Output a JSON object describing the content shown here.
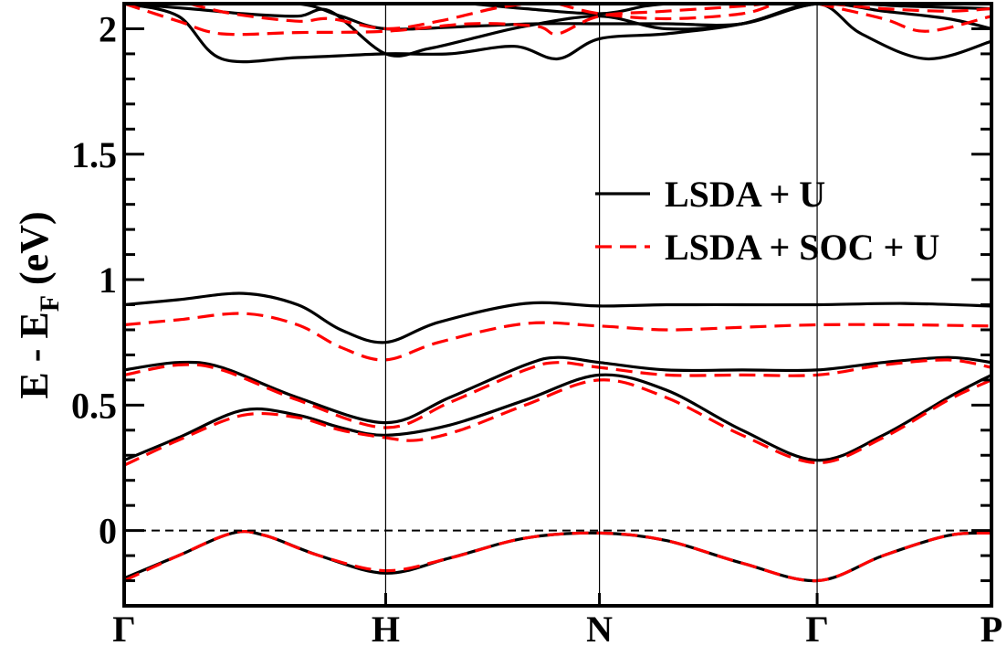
{
  "chart_data": {
    "type": "line",
    "title": "",
    "ylabel": "E - E",
    "ylabel_sub": "F",
    "ylabel_unit": " (eV)",
    "ylim": [
      -0.3,
      2.1
    ],
    "yticks": [
      0,
      0.5,
      1,
      1.5,
      2
    ],
    "yticklabels": [
      "0",
      "0.5",
      "1",
      "1.5",
      "2"
    ],
    "xlim": [
      0,
      4
    ],
    "kpoints": [
      {
        "label": "Γ",
        "x": 0
      },
      {
        "label": "H",
        "x": 1.206
      },
      {
        "label": "N",
        "x": 2.192
      },
      {
        "label": "Γ",
        "x": 3.196
      },
      {
        "label": "P",
        "x": 4
      }
    ],
    "fermi_level": 0,
    "legend": {
      "placement": "right",
      "entries": [
        {
          "label": "LSDA + U",
          "style": "solid",
          "color": "#000000"
        },
        {
          "label": "LSDA + SOC + U",
          "style": "dashed",
          "color": "#ff0000"
        }
      ]
    },
    "series": [
      {
        "name": "LSDA + U",
        "style": "solid",
        "color": "#000000",
        "bands": [
          [
            [
              0,
              -0.19
            ],
            [
              0.25,
              -0.1
            ],
            [
              0.5,
              -0.01
            ],
            [
              0.65,
              -0.02
            ],
            [
              0.9,
              -0.1
            ],
            [
              1.206,
              -0.17
            ],
            [
              1.5,
              -0.11
            ],
            [
              1.85,
              -0.03
            ],
            [
              2.192,
              -0.01
            ],
            [
              2.5,
              -0.04
            ],
            [
              2.85,
              -0.13
            ],
            [
              3.196,
              -0.2
            ],
            [
              3.5,
              -0.1
            ],
            [
              3.8,
              -0.02
            ],
            [
              4,
              -0.01
            ]
          ],
          [
            [
              0,
              0.28
            ],
            [
              0.25,
              0.37
            ],
            [
              0.55,
              0.48
            ],
            [
              0.8,
              0.46
            ],
            [
              1.0,
              0.41
            ],
            [
              1.206,
              0.38
            ],
            [
              1.5,
              0.42
            ],
            [
              1.85,
              0.52
            ],
            [
              2.192,
              0.62
            ],
            [
              2.5,
              0.56
            ],
            [
              2.85,
              0.4
            ],
            [
              3.196,
              0.28
            ],
            [
              3.5,
              0.38
            ],
            [
              3.8,
              0.53
            ],
            [
              4,
              0.62
            ]
          ],
          [
            [
              0,
              0.64
            ],
            [
              0.25,
              0.67
            ],
            [
              0.45,
              0.65
            ],
            [
              0.8,
              0.53
            ],
            [
              1.206,
              0.43
            ],
            [
              1.5,
              0.53
            ],
            [
              1.85,
              0.66
            ],
            [
              2.0,
              0.69
            ],
            [
              2.192,
              0.67
            ],
            [
              2.5,
              0.64
            ],
            [
              2.85,
              0.64
            ],
            [
              3.196,
              0.64
            ],
            [
              3.5,
              0.67
            ],
            [
              3.8,
              0.69
            ],
            [
              4,
              0.67
            ]
          ],
          [
            [
              0,
              0.9
            ],
            [
              0.25,
              0.92
            ],
            [
              0.55,
              0.945
            ],
            [
              0.8,
              0.9
            ],
            [
              1.0,
              0.8
            ],
            [
              1.206,
              0.75
            ],
            [
              1.45,
              0.83
            ],
            [
              1.85,
              0.905
            ],
            [
              2.192,
              0.895
            ],
            [
              2.5,
              0.9
            ],
            [
              2.85,
              0.9
            ],
            [
              3.196,
              0.9
            ],
            [
              3.6,
              0.905
            ],
            [
              4,
              0.895
            ]
          ],
          [
            [
              0,
              2.1
            ],
            [
              0.3,
              2.08
            ],
            [
              0.55,
              2.06
            ],
            [
              0.8,
              2.05
            ],
            [
              0.95,
              2.07
            ],
            [
              1.206,
              1.9
            ],
            [
              1.4,
              1.92
            ],
            [
              1.6,
              1.96
            ],
            [
              1.85,
              2.01
            ],
            [
              2.192,
              2.05
            ],
            [
              2.5,
              2.0
            ],
            [
              2.85,
              2.02
            ],
            [
              3.196,
              2.1
            ],
            [
              3.4,
              1.98
            ],
            [
              3.7,
              1.88
            ],
            [
              4,
              1.95
            ]
          ],
          [
            [
              0,
              2.1
            ],
            [
              0.25,
              2.05
            ],
            [
              0.45,
              1.88
            ],
            [
              0.8,
              1.885
            ],
            [
              1.206,
              1.9
            ],
            [
              1.5,
              1.9
            ],
            [
              1.8,
              1.93
            ],
            [
              2.0,
              1.88
            ],
            [
              2.192,
              1.96
            ],
            [
              2.5,
              1.98
            ],
            [
              2.85,
              2.02
            ],
            [
              3.196,
              2.1
            ],
            [
              3.5,
              2.07
            ],
            [
              3.8,
              2.04
            ],
            [
              4,
              2.0
            ]
          ],
          [
            [
              0,
              2.1
            ],
            [
              0.4,
              2.1
            ],
            [
              0.8,
              2.1
            ],
            [
              1.0,
              2.05
            ],
            [
              1.206,
              2.0
            ],
            [
              1.6,
              2.01
            ],
            [
              1.9,
              2.02
            ],
            [
              2.192,
              2.02
            ],
            [
              2.5,
              2.02
            ],
            [
              2.85,
              2.02
            ],
            [
              3.196,
              2.1
            ],
            [
              3.6,
              2.09
            ],
            [
              4,
              2.08
            ]
          ],
          [
            [
              1.6,
              2.1
            ],
            [
              1.85,
              2.08
            ],
            [
              2.192,
              2.06
            ],
            [
              2.4,
              2.09
            ],
            [
              2.5,
              2.1
            ]
          ]
        ]
      },
      {
        "name": "LSDA + SOC + U",
        "style": "dashed",
        "color": "#ff0000",
        "bands": [
          [
            [
              0,
              -0.2
            ],
            [
              0.25,
              -0.1
            ],
            [
              0.5,
              -0.01
            ],
            [
              0.65,
              -0.02
            ],
            [
              0.9,
              -0.1
            ],
            [
              1.206,
              -0.16
            ],
            [
              1.5,
              -0.11
            ],
            [
              1.85,
              -0.03
            ],
            [
              2.192,
              -0.01
            ],
            [
              2.5,
              -0.04
            ],
            [
              2.85,
              -0.13
            ],
            [
              3.196,
              -0.2
            ],
            [
              3.5,
              -0.1
            ],
            [
              3.8,
              -0.02
            ],
            [
              4,
              -0.01
            ]
          ],
          [
            [
              0,
              0.26
            ],
            [
              0.25,
              0.36
            ],
            [
              0.55,
              0.46
            ],
            [
              0.8,
              0.45
            ],
            [
              1.0,
              0.4
            ],
            [
              1.206,
              0.37
            ],
            [
              1.35,
              0.36
            ],
            [
              1.55,
              0.4
            ],
            [
              1.85,
              0.5
            ],
            [
              2.192,
              0.6
            ],
            [
              2.5,
              0.53
            ],
            [
              2.85,
              0.38
            ],
            [
              3.196,
              0.27
            ],
            [
              3.5,
              0.37
            ],
            [
              3.8,
              0.52
            ],
            [
              4,
              0.6
            ]
          ],
          [
            [
              0,
              0.62
            ],
            [
              0.25,
              0.66
            ],
            [
              0.45,
              0.64
            ],
            [
              0.8,
              0.52
            ],
            [
              1.206,
              0.41
            ],
            [
              1.5,
              0.51
            ],
            [
              1.85,
              0.64
            ],
            [
              2.0,
              0.67
            ],
            [
              2.192,
              0.65
            ],
            [
              2.5,
              0.62
            ],
            [
              2.85,
              0.62
            ],
            [
              3.196,
              0.62
            ],
            [
              3.5,
              0.66
            ],
            [
              3.8,
              0.68
            ],
            [
              4,
              0.65
            ]
          ],
          [
            [
              0,
              0.82
            ],
            [
              0.25,
              0.84
            ],
            [
              0.55,
              0.865
            ],
            [
              0.8,
              0.82
            ],
            [
              1.0,
              0.73
            ],
            [
              1.206,
              0.68
            ],
            [
              1.45,
              0.75
            ],
            [
              1.85,
              0.825
            ],
            [
              2.192,
              0.815
            ],
            [
              2.5,
              0.8
            ],
            [
              2.85,
              0.81
            ],
            [
              3.196,
              0.82
            ],
            [
              3.6,
              0.82
            ],
            [
              4,
              0.815
            ]
          ],
          [
            [
              0,
              2.1
            ],
            [
              0.25,
              2.03
            ],
            [
              0.45,
              1.98
            ],
            [
              0.8,
              1.985
            ],
            [
              1.206,
              1.99
            ],
            [
              1.6,
              2.02
            ],
            [
              1.9,
              2.01
            ],
            [
              2.0,
              1.98
            ],
            [
              2.192,
              2.05
            ],
            [
              2.5,
              2.07
            ],
            [
              2.85,
              2.09
            ],
            [
              2.95,
              2.1
            ]
          ],
          [
            [
              0.3,
              2.1
            ],
            [
              0.5,
              2.06
            ],
            [
              0.8,
              2.03
            ],
            [
              0.95,
              2.04
            ],
            [
              1.206,
              2.0
            ],
            [
              1.45,
              2.03
            ],
            [
              1.7,
              2.08
            ],
            [
              1.85,
              2.1
            ]
          ],
          [
            [
              2.0,
              2.1
            ],
            [
              2.192,
              2.06
            ],
            [
              2.5,
              2.04
            ],
            [
              2.85,
              2.06
            ],
            [
              3.0,
              2.1
            ]
          ],
          [
            [
              3.2,
              2.1
            ],
            [
              3.5,
              2.04
            ],
            [
              3.7,
              1.99
            ],
            [
              4,
              2.05
            ]
          ],
          [
            [
              3.25,
              2.1
            ],
            [
              3.5,
              2.08
            ],
            [
              3.8,
              2.07
            ],
            [
              4,
              2.08
            ]
          ]
        ]
      }
    ]
  }
}
